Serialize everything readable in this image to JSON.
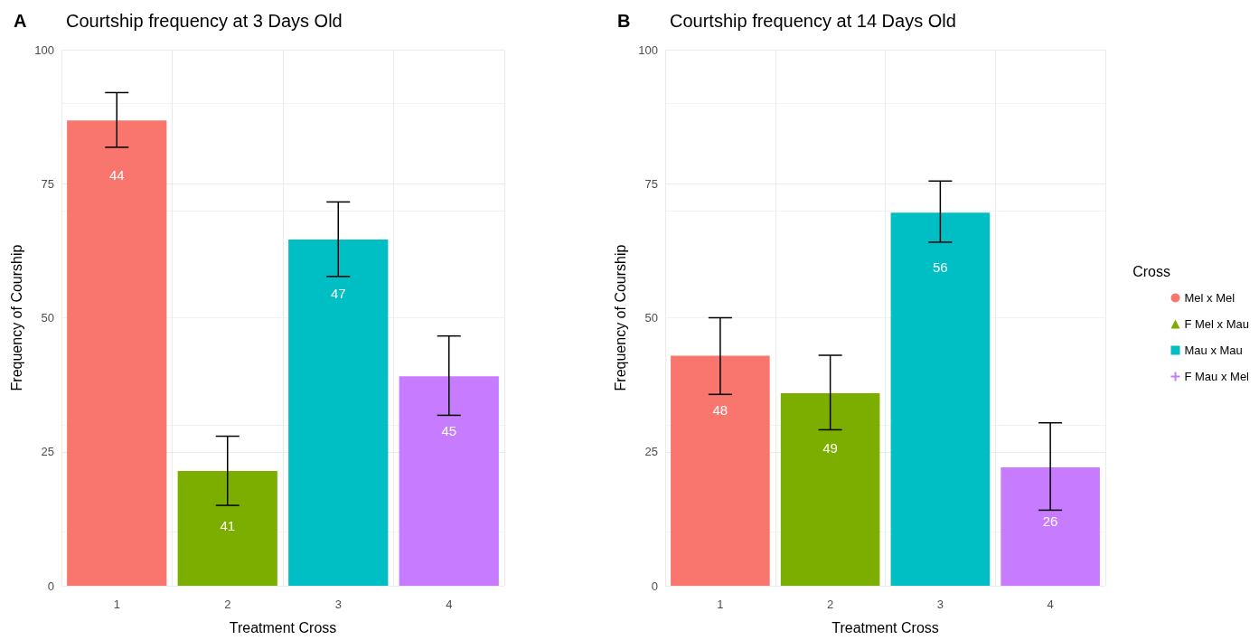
{
  "chart_data": [
    {
      "type": "bar",
      "title": "Courtship frequency at 3 Days Old",
      "xlabel": "Treatment Cross",
      "ylabel": "Frequency of Courship",
      "categories": [
        "1",
        "2",
        "3",
        "4"
      ],
      "stacked": true,
      "ylim": [
        0,
        100
      ],
      "yticks": [
        0,
        25,
        50,
        75,
        100
      ],
      "grid": true,
      "legend": false,
      "annotations": [
        "A",
        "44",
        "41",
        "47",
        "45"
      ],
      "series": [
        {
          "color": "#f8766d",
          "values": [
            86.8,
            null,
            null,
            null
          ],
          "errors": [
            [
              81.8,
              92.0
            ],
            null,
            null,
            null
          ]
        },
        {
          "color": "#7cae00",
          "values": [
            null,
            21.4,
            null,
            null
          ],
          "errors": [
            null,
            [
              15.0,
              27.9
            ],
            null,
            null
          ]
        },
        {
          "color": "#00bfc4",
          "values": [
            null,
            null,
            64.6,
            null
          ],
          "errors": [
            null,
            null,
            [
              57.7,
              71.6
            ],
            null
          ]
        },
        {
          "color": "#c77cff",
          "values": [
            null,
            null,
            null,
            39.1
          ],
          "errors": [
            null,
            null,
            null,
            [
              31.8,
              46.6
            ]
          ]
        }
      ]
    },
    {
      "type": "bar",
      "title": "Courtship frequency at 14 Days Old",
      "xlabel": "Treatment Cross",
      "ylabel": "Frequency of Courship",
      "categories": [
        "1",
        "2",
        "3",
        "4"
      ],
      "stacked": true,
      "ylim": [
        0,
        100
      ],
      "yticks": [
        0,
        25,
        50,
        75,
        100
      ],
      "grid": true,
      "legend": "right",
      "legend_title": "Cross",
      "annotations": [
        "B",
        "48",
        "49",
        "56",
        "26"
      ],
      "series": [
        {
          "name": "Mel x Mel",
          "color": "#f8766d",
          "marker": "circle",
          "values": [
            42.9,
            null,
            null,
            null
          ],
          "errors": [
            [
              35.7,
              50.0
            ],
            null,
            null,
            null
          ]
        },
        {
          "name": "F Mel x Mau",
          "color": "#7cae00",
          "marker": "triangle",
          "values": [
            null,
            35.9,
            null,
            null
          ],
          "errors": [
            null,
            [
              29.1,
              43.0
            ],
            null,
            null
          ]
        },
        {
          "name": "Mau x Mau",
          "color": "#00bfc4",
          "marker": "square",
          "values": [
            null,
            null,
            69.6,
            null
          ],
          "errors": [
            null,
            null,
            [
              64.1,
              75.5
            ],
            null
          ]
        },
        {
          "name": "F Mau x Mel",
          "color": "#c77cff",
          "marker": "cross",
          "values": [
            null,
            null,
            null,
            22.1
          ],
          "errors": [
            null,
            null,
            null,
            [
              14.1,
              30.4
            ]
          ]
        }
      ]
    }
  ]
}
